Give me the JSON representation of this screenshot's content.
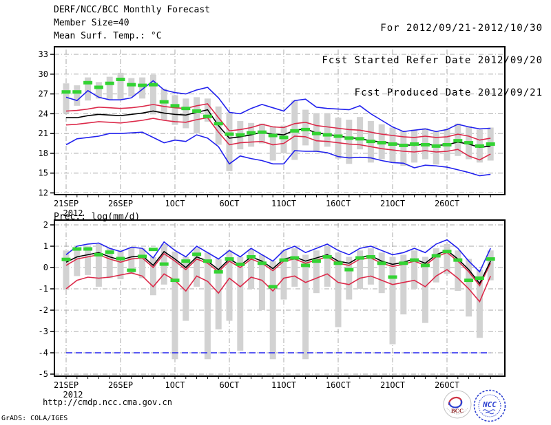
{
  "header": {
    "title": "DERF/NCC/BCC Monthly Forecast",
    "member_size": "Member Size=40",
    "for_range": "For 2012/09/21-2012/10/30",
    "fcst_started": "Fcst Started Refer Date 2012/09/20",
    "fcst_produced": "Fcst Produced Date 2012/09/21"
  },
  "footer": {
    "url": "http://cmdp.ncc.cma.gov.cn",
    "grads_credit": "GrADS: COLA/IGES",
    "bcc_logo_label": "BCC",
    "ncc_logo_label": "NCC"
  },
  "colors": {
    "max_min_line": "#2222ee",
    "quartile_line": "#dc2a4a",
    "mean_line": "#000000",
    "observation_dash": "#33d333",
    "spread_bar": "#d2d2d2",
    "gridline": "#a8a8a8",
    "frame": "#000000"
  },
  "chart_data": [
    {
      "type": "line",
      "name": "mean-surface-temperature-chart",
      "title": "Mean Surf. Temp.: °C",
      "ylim": [
        12,
        33
      ],
      "yticks": [
        12,
        15,
        18,
        21,
        24,
        27,
        30,
        33
      ],
      "x_ticks": [
        {
          "day": 0,
          "label": "21SEP"
        },
        {
          "day": 5,
          "label": "26SEP"
        },
        {
          "day": 10,
          "label": "1OCT"
        },
        {
          "day": 15,
          "label": "6OCT"
        },
        {
          "day": 20,
          "label": "11OCT"
        },
        {
          "day": 25,
          "label": "16OCT"
        },
        {
          "day": 30,
          "label": "21OCT"
        },
        {
          "day": 35,
          "label": "26OCT"
        }
      ],
      "year_label": "2012",
      "n_days": 40,
      "series": [
        {
          "name": "upper-quartile",
          "color": "#dc2a4a",
          "values": [
            24.4,
            24.5,
            24.7,
            25.0,
            24.9,
            24.8,
            24.9,
            25.1,
            25.4,
            25.1,
            24.9,
            24.8,
            25.2,
            25.5,
            23.4,
            21.4,
            21.6,
            21.9,
            22.4,
            22.0,
            21.9,
            22.5,
            22.7,
            22.2,
            22.0,
            21.8,
            21.6,
            21.5,
            21.2,
            20.9,
            20.7,
            20.5,
            20.4,
            20.6,
            20.4,
            20.5,
            20.9,
            20.6,
            20.0,
            20.3
          ]
        },
        {
          "name": "lower-quartile",
          "color": "#dc2a4a",
          "values": [
            22.3,
            22.4,
            22.6,
            22.8,
            22.7,
            22.6,
            22.8,
            23.0,
            23.3,
            23.0,
            22.8,
            22.7,
            23.1,
            23.4,
            21.2,
            19.3,
            19.6,
            19.7,
            19.8,
            19.3,
            19.5,
            20.6,
            20.5,
            19.9,
            19.8,
            19.6,
            19.4,
            19.3,
            19.0,
            18.7,
            18.5,
            18.3,
            18.2,
            18.4,
            18.2,
            18.3,
            18.6,
            17.6,
            17.0,
            17.9
          ]
        },
        {
          "name": "ensemble-max",
          "color": "#2222ee",
          "values": [
            26.5,
            26.0,
            27.5,
            26.5,
            26.1,
            26.1,
            26.4,
            27.7,
            29.0,
            27.6,
            27.2,
            27.0,
            27.6,
            28.0,
            26.4,
            24.2,
            24.0,
            24.8,
            25.4,
            24.9,
            24.4,
            26.0,
            26.2,
            25.0,
            24.8,
            24.7,
            24.6,
            25.2,
            24.0,
            23.0,
            22.0,
            21.3,
            21.5,
            21.7,
            21.3,
            21.6,
            22.4,
            22.0,
            21.7,
            21.8
          ]
        },
        {
          "name": "ensemble-min",
          "color": "#2222ee",
          "values": [
            19.3,
            20.2,
            20.4,
            20.6,
            21.0,
            21.0,
            21.1,
            21.2,
            20.4,
            19.6,
            20.0,
            19.8,
            20.8,
            20.3,
            19.0,
            16.4,
            17.6,
            17.2,
            16.9,
            16.4,
            16.4,
            18.4,
            18.3,
            18.3,
            18.1,
            17.5,
            17.3,
            17.4,
            17.3,
            16.9,
            16.6,
            16.5,
            15.8,
            16.2,
            16.1,
            15.9,
            15.5,
            15.1,
            14.6,
            14.8
          ]
        },
        {
          "name": "ensemble-mean",
          "color": "#000000",
          "values": [
            23.4,
            23.4,
            23.7,
            23.9,
            23.8,
            23.7,
            23.9,
            24.1,
            24.4,
            24.1,
            23.9,
            23.8,
            24.2,
            24.6,
            22.2,
            20.3,
            20.5,
            20.8,
            21.2,
            20.9,
            20.8,
            21.5,
            21.7,
            21.1,
            20.9,
            20.6,
            20.4,
            20.2,
            19.9,
            19.7,
            19.5,
            19.3,
            19.2,
            19.4,
            19.2,
            19.3,
            19.7,
            19.4,
            18.9,
            19.1
          ]
        }
      ],
      "spread_bars": {
        "color": "#d2d2d2",
        "top": [
          28.6,
          28.3,
          29.5,
          28.8,
          29.6,
          30.2,
          29.4,
          29.5,
          29.9,
          27.8,
          26.8,
          26.3,
          26.5,
          26.3,
          25.1,
          24.2,
          22.9,
          22.6,
          22.5,
          22.1,
          22.2,
          26.0,
          24.6,
          24.1,
          24.1,
          23.4,
          23.1,
          23.5,
          22.9,
          22.4,
          21.9,
          21.4,
          21.6,
          21.8,
          21.3,
          21.7,
          22.5,
          22.1,
          21.6,
          21.9
        ],
        "bottom": [
          24.0,
          25.2,
          26.0,
          26.3,
          26.1,
          26.2,
          26.6,
          26.3,
          23.9,
          23.0,
          22.3,
          21.8,
          21.0,
          22.8,
          19.3,
          15.3,
          18.6,
          19.0,
          19.5,
          16.9,
          18.0,
          17.0,
          19.2,
          18.2,
          19.0,
          17.2,
          16.4,
          18.6,
          16.6,
          17.1,
          16.6,
          16.1,
          16.6,
          17.1,
          16.3,
          16.9,
          17.6,
          17.1,
          16.6,
          16.9
        ]
      },
      "green_dashes": {
        "color": "#33d333",
        "values": [
          27.3,
          27.3,
          28.7,
          28.0,
          28.6,
          29.2,
          28.4,
          28.3,
          28.4,
          25.8,
          25.2,
          24.8,
          24.4,
          23.6,
          22.5,
          20.9,
          20.8,
          21.1,
          21.2,
          20.7,
          20.4,
          21.4,
          21.6,
          21.0,
          20.8,
          20.6,
          20.3,
          20.2,
          19.8,
          19.6,
          19.4,
          19.2,
          19.4,
          19.3,
          19.1,
          19.3,
          19.9,
          19.6,
          19.1,
          19.4
        ]
      }
    },
    {
      "type": "line",
      "name": "precipitation-chart",
      "title": "Prec.: log(mm/d)",
      "ylim": [
        -5,
        2
      ],
      "yticks": [
        -5,
        -4,
        -3,
        -2,
        -1,
        0,
        1,
        2
      ],
      "x_ticks": [
        {
          "day": 0,
          "label": "21SEP"
        },
        {
          "day": 5,
          "label": "26SEP"
        },
        {
          "day": 10,
          "label": "1OCT"
        },
        {
          "day": 15,
          "label": "6OCT"
        },
        {
          "day": 20,
          "label": "11OCT"
        },
        {
          "day": 25,
          "label": "16OCT"
        },
        {
          "day": 30,
          "label": "21OCT"
        },
        {
          "day": 35,
          "label": "26OCT"
        }
      ],
      "year_label": "2012",
      "n_days": 40,
      "series": [
        {
          "name": "upper-quartile",
          "color": "#dc2a4a",
          "values": [
            0.1,
            0.4,
            0.5,
            0.6,
            0.4,
            0.25,
            0.4,
            0.45,
            0.0,
            0.65,
            0.3,
            -0.1,
            0.4,
            0.2,
            -0.2,
            0.3,
            0.0,
            0.4,
            0.2,
            -0.15,
            0.3,
            0.4,
            0.2,
            0.35,
            0.5,
            0.2,
            0.1,
            0.4,
            0.45,
            0.2,
            0.05,
            0.15,
            0.3,
            0.1,
            0.5,
            0.7,
            0.3,
            -0.2,
            -0.85,
            0.2
          ]
        },
        {
          "name": "lower-quartile",
          "color": "#dc2a4a",
          "values": [
            -1.0,
            -0.6,
            -0.45,
            -0.5,
            -0.45,
            -0.35,
            -0.25,
            -0.4,
            -0.9,
            -0.3,
            -0.6,
            -1.1,
            -0.4,
            -0.65,
            -1.2,
            -0.5,
            -0.9,
            -0.45,
            -0.6,
            -1.1,
            -0.5,
            -0.4,
            -0.7,
            -0.5,
            -0.3,
            -0.7,
            -0.8,
            -0.5,
            -0.4,
            -0.6,
            -0.8,
            -0.7,
            -0.6,
            -0.9,
            -0.4,
            -0.1,
            -0.5,
            -1.0,
            -1.6,
            -0.4
          ]
        },
        {
          "name": "ensemble-max",
          "color": "#2222ee",
          "values": [
            0.6,
            1.0,
            1.1,
            1.15,
            0.9,
            0.75,
            0.95,
            0.9,
            0.45,
            1.2,
            0.8,
            0.5,
            1.0,
            0.7,
            0.4,
            0.8,
            0.5,
            0.9,
            0.6,
            0.3,
            0.8,
            1.0,
            0.7,
            0.9,
            1.1,
            0.8,
            0.6,
            0.9,
            1.0,
            0.8,
            0.6,
            0.7,
            0.9,
            0.7,
            1.1,
            1.3,
            0.9,
            0.3,
            -0.2,
            0.9
          ]
        },
        {
          "name": "ensemble-min",
          "color": "#2222ee",
          "dash": true,
          "values": [
            -4,
            -4,
            -4,
            -4,
            -4,
            -4,
            -4,
            -4,
            -4,
            -4,
            -4,
            -4,
            -4,
            -4,
            -4,
            -4,
            -4,
            -4,
            -4,
            -4,
            -4,
            -4,
            -4,
            -4,
            -4,
            -4,
            -4,
            -4,
            -4,
            -4,
            -4,
            -4,
            -4,
            -4,
            -4,
            -4,
            -4,
            -4,
            -4,
            -4
          ]
        },
        {
          "name": "ensemble-mean",
          "color": "#000000",
          "values": [
            0.25,
            0.5,
            0.6,
            0.7,
            0.5,
            0.35,
            0.5,
            0.55,
            0.1,
            0.75,
            0.4,
            0.0,
            0.5,
            0.3,
            -0.1,
            0.4,
            0.1,
            0.5,
            0.3,
            -0.05,
            0.4,
            0.5,
            0.3,
            0.45,
            0.6,
            0.3,
            0.2,
            0.5,
            0.55,
            0.3,
            0.15,
            0.25,
            0.4,
            0.2,
            0.6,
            0.8,
            0.4,
            -0.1,
            -0.75,
            0.3
          ]
        }
      ],
      "spread_bars": {
        "color": "#d2d2d2",
        "top": [
          0.8,
          0.95,
          1.0,
          1.1,
          0.9,
          0.8,
          0.9,
          0.9,
          0.5,
          1.1,
          0.75,
          0.5,
          0.9,
          0.7,
          0.4,
          0.8,
          0.5,
          0.85,
          0.6,
          0.3,
          0.8,
          0.9,
          0.6,
          0.8,
          1.0,
          0.7,
          0.5,
          0.8,
          0.9,
          0.7,
          0.5,
          0.6,
          0.8,
          0.5,
          0.9,
          1.1,
          0.8,
          0.4,
          -0.1,
          0.8
        ],
        "bottom": [
          -1.05,
          -0.4,
          -0.35,
          -0.9,
          -0.5,
          -0.55,
          -0.3,
          -0.5,
          -1.3,
          -0.8,
          -4.3,
          -2.5,
          -0.9,
          -4.3,
          -2.9,
          -2.5,
          -3.9,
          -1.0,
          -2.0,
          -4.3,
          -1.5,
          -0.9,
          -4.3,
          -1.2,
          -0.9,
          -2.8,
          -1.5,
          -1.0,
          -0.8,
          -1.2,
          -3.6,
          -2.2,
          -1.0,
          -2.6,
          -0.7,
          -0.3,
          -1.1,
          -2.3,
          -3.3,
          -0.6
        ]
      },
      "green_dashes": {
        "color": "#33d333",
        "values": [
          0.38,
          0.87,
          0.87,
          0.6,
          0.72,
          0.42,
          -0.13,
          0.52,
          0.85,
          0.16,
          -0.6,
          0.3,
          0.62,
          0.3,
          -0.2,
          0.4,
          0.15,
          0.5,
          0.2,
          -0.9,
          0.35,
          0.45,
          0.1,
          0.3,
          0.5,
          0.2,
          -0.1,
          0.45,
          0.5,
          0.2,
          -0.45,
          0.2,
          0.35,
          0.1,
          0.55,
          0.75,
          0.35,
          -0.6,
          -0.5,
          0.4
        ]
      }
    }
  ]
}
